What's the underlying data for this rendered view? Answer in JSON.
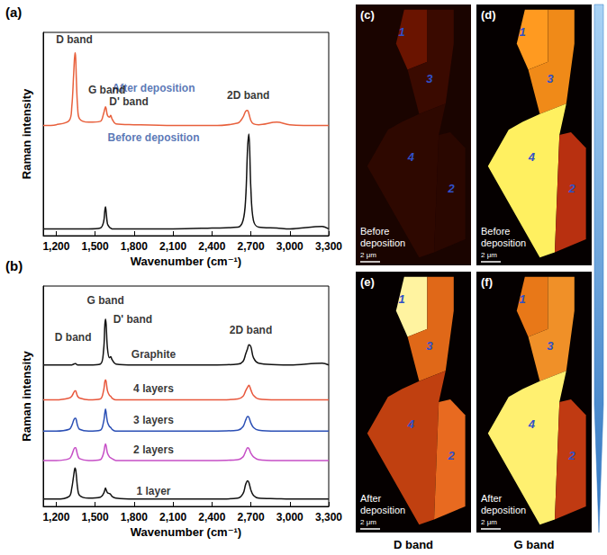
{
  "chart_data": [
    {
      "type": "line",
      "panel": "(a)",
      "x_label": "Wavenumber (cm⁻¹)",
      "y_label": "Raman intensity",
      "x": [
        1100,
        1200,
        1300,
        1320,
        1335,
        1345,
        1350,
        1355,
        1365,
        1380,
        1450,
        1540,
        1565,
        1575,
        1580,
        1585,
        1595,
        1610,
        1620,
        1630,
        1660,
        1800,
        2100,
        2400,
        2600,
        2640,
        2660,
        2675,
        2685,
        2700,
        2720,
        2760,
        2900,
        3000,
        3250,
        3300
      ],
      "xlim": [
        1100,
        3300
      ],
      "xticks": [
        1200,
        1500,
        1800,
        2100,
        2400,
        2700,
        3000,
        3300
      ],
      "ylim": [
        0,
        12
      ],
      "tick_labels": "x",
      "grid": false,
      "series": [
        {
          "name": "After deposition",
          "color": "#e8603c",
          "name_at": [
            1950,
            8.7
          ],
          "values": [
            6.5,
            6.55,
            6.8,
            7.6,
            9.6,
            10.8,
            10.5,
            9.3,
            7.6,
            6.9,
            6.7,
            6.75,
            7.2,
            7.5,
            7.6,
            7.5,
            7.1,
            7.0,
            7.1,
            6.9,
            6.6,
            6.55,
            6.5,
            6.5,
            6.65,
            7.0,
            7.35,
            7.4,
            7.2,
            6.8,
            6.6,
            6.55,
            6.7,
            6.55,
            6.5,
            6.5
          ]
        },
        {
          "name": "Before deposition",
          "color": "#111111",
          "name_at": [
            1950,
            5.8
          ],
          "values": [
            0.4,
            0.4,
            0.4,
            0.4,
            0.4,
            0.4,
            0.4,
            0.4,
            0.4,
            0.4,
            0.4,
            0.45,
            0.8,
            1.5,
            1.7,
            1.4,
            0.7,
            0.5,
            0.45,
            0.4,
            0.4,
            0.4,
            0.4,
            0.45,
            0.5,
            0.9,
            2.2,
            5.2,
            6.0,
            2.8,
            0.9,
            0.5,
            0.45,
            0.4,
            0.55,
            0.4
          ]
        }
      ],
      "annotations": [
        {
          "text": "D band",
          "x": 1340,
          "y": 11.6
        },
        {
          "text": "G band",
          "x": 1590,
          "y": 8.6
        },
        {
          "text": "D' band",
          "x": 1760,
          "y": 7.9
        },
        {
          "text": "2D band",
          "x": 2680,
          "y": 8.3
        }
      ]
    },
    {
      "type": "line",
      "panel": "(b)",
      "x_label": "Wavenumber (cm⁻¹)",
      "y_label": "Raman intensity",
      "x": [
        1100,
        1200,
        1300,
        1320,
        1335,
        1345,
        1350,
        1355,
        1365,
        1380,
        1450,
        1540,
        1565,
        1575,
        1580,
        1585,
        1595,
        1610,
        1620,
        1630,
        1660,
        1800,
        2100,
        2400,
        2600,
        2640,
        2660,
        2675,
        2685,
        2700,
        2720,
        2760,
        2900,
        3000,
        3250,
        3300
      ],
      "xlim": [
        1100,
        3300
      ],
      "xticks": [
        1200,
        1500,
        1800,
        2100,
        2400,
        2700,
        3000,
        3300
      ],
      "ylim": [
        0,
        12
      ],
      "tick_labels": "x",
      "grid": false,
      "series": [
        {
          "name": "Graphite",
          "color": "#111111",
          "name_at": [
            1950,
            8.3
          ],
          "values": [
            7.7,
            7.7,
            7.7,
            7.7,
            7.75,
            7.78,
            7.78,
            7.75,
            7.7,
            7.7,
            7.7,
            7.75,
            8.5,
            9.9,
            10.2,
            9.9,
            8.6,
            8.1,
            8.15,
            8.0,
            7.75,
            7.7,
            7.7,
            7.7,
            7.75,
            7.9,
            8.3,
            8.6,
            8.8,
            8.7,
            8.1,
            7.8,
            7.72,
            7.7,
            7.8,
            7.7
          ]
        },
        {
          "name": "4 layers",
          "color": "#e8573c",
          "name_at": [
            1950,
            6.4
          ],
          "values": [
            5.8,
            5.8,
            5.9,
            6.0,
            6.2,
            6.3,
            6.3,
            6.2,
            6.0,
            5.9,
            5.8,
            5.85,
            6.3,
            6.8,
            6.9,
            6.8,
            6.3,
            6.05,
            6.0,
            5.9,
            5.8,
            5.8,
            5.8,
            5.8,
            5.85,
            6.0,
            6.3,
            6.5,
            6.6,
            6.35,
            6.05,
            5.85,
            5.8,
            5.8,
            5.8,
            5.8
          ]
        },
        {
          "name": "3 layers",
          "color": "#2b4fb5",
          "name_at": [
            1950,
            4.7
          ],
          "values": [
            4.1,
            4.1,
            4.2,
            4.4,
            4.7,
            4.8,
            4.8,
            4.7,
            4.4,
            4.2,
            4.1,
            4.15,
            4.6,
            5.1,
            5.3,
            5.1,
            4.6,
            4.35,
            4.3,
            4.2,
            4.1,
            4.1,
            4.1,
            4.1,
            4.15,
            4.35,
            4.7,
            4.9,
            4.85,
            4.55,
            4.3,
            4.15,
            4.1,
            4.1,
            4.1,
            4.1
          ]
        },
        {
          "name": "2 layers",
          "color": "#c64fc6",
          "name_at": [
            1950,
            3.1
          ],
          "values": [
            2.5,
            2.5,
            2.6,
            2.8,
            3.1,
            3.2,
            3.2,
            3.1,
            2.8,
            2.6,
            2.5,
            2.55,
            2.9,
            3.3,
            3.4,
            3.3,
            2.9,
            2.7,
            2.65,
            2.6,
            2.5,
            2.5,
            2.5,
            2.5,
            2.55,
            2.7,
            3.0,
            3.2,
            3.15,
            2.9,
            2.7,
            2.55,
            2.5,
            2.5,
            2.5,
            2.5
          ]
        },
        {
          "name": "1 layer",
          "color": "#111111",
          "name_at": [
            1950,
            0.85
          ],
          "values": [
            0.4,
            0.4,
            0.55,
            1.0,
            1.7,
            2.1,
            2.0,
            1.7,
            1.0,
            0.6,
            0.45,
            0.5,
            0.7,
            0.9,
            1.0,
            0.9,
            0.75,
            0.7,
            0.65,
            0.55,
            0.45,
            0.4,
            0.4,
            0.4,
            0.45,
            0.7,
            1.2,
            1.4,
            1.3,
            0.9,
            0.6,
            0.45,
            0.42,
            0.4,
            0.4,
            0.4
          ]
        }
      ],
      "annotations": [
        {
          "text": "G band",
          "x": 1580,
          "y": 11.2
        },
        {
          "text": "D' band",
          "x": 1790,
          "y": 10.2
        },
        {
          "text": "D band",
          "x": 1330,
          "y": 9.2
        },
        {
          "text": "2D band",
          "x": 2700,
          "y": 9.6
        }
      ]
    }
  ],
  "maps": {
    "scale_bar": "2 μm",
    "columns": [
      "D band",
      "G band"
    ],
    "panels": [
      {
        "panel": "(c)",
        "caption": "Before deposition",
        "background": "#1a0400",
        "regions": [
          {
            "label": "1",
            "color": "#6a1400"
          },
          {
            "label": "3",
            "color": "#3a0a00"
          },
          {
            "label": "4",
            "color": "#2e0800"
          },
          {
            "label": "2",
            "color": "#2a0700"
          }
        ]
      },
      {
        "panel": "(d)",
        "caption": "Before deposition",
        "background": "#050000",
        "regions": [
          {
            "label": "1",
            "color": "#ff9a20"
          },
          {
            "label": "3",
            "color": "#f08a18"
          },
          {
            "label": "4",
            "color": "#fff060"
          },
          {
            "label": "2",
            "color": "#b83010"
          }
        ]
      },
      {
        "panel": "(e)",
        "caption": "After deposition",
        "background": "#050000",
        "regions": [
          {
            "label": "1",
            "color": "#fff3a0"
          },
          {
            "label": "3",
            "color": "#e06818"
          },
          {
            "label": "4",
            "color": "#c04010"
          },
          {
            "label": "2",
            "color": "#e86a20"
          }
        ]
      },
      {
        "panel": "(f)",
        "caption": "After deposition",
        "background": "#050000",
        "regions": [
          {
            "label": "1",
            "color": "#e87818"
          },
          {
            "label": "3",
            "color": "#f09028"
          },
          {
            "label": "4",
            "color": "#fff070"
          },
          {
            "label": "2",
            "color": "#c03a12"
          }
        ]
      }
    ]
  }
}
